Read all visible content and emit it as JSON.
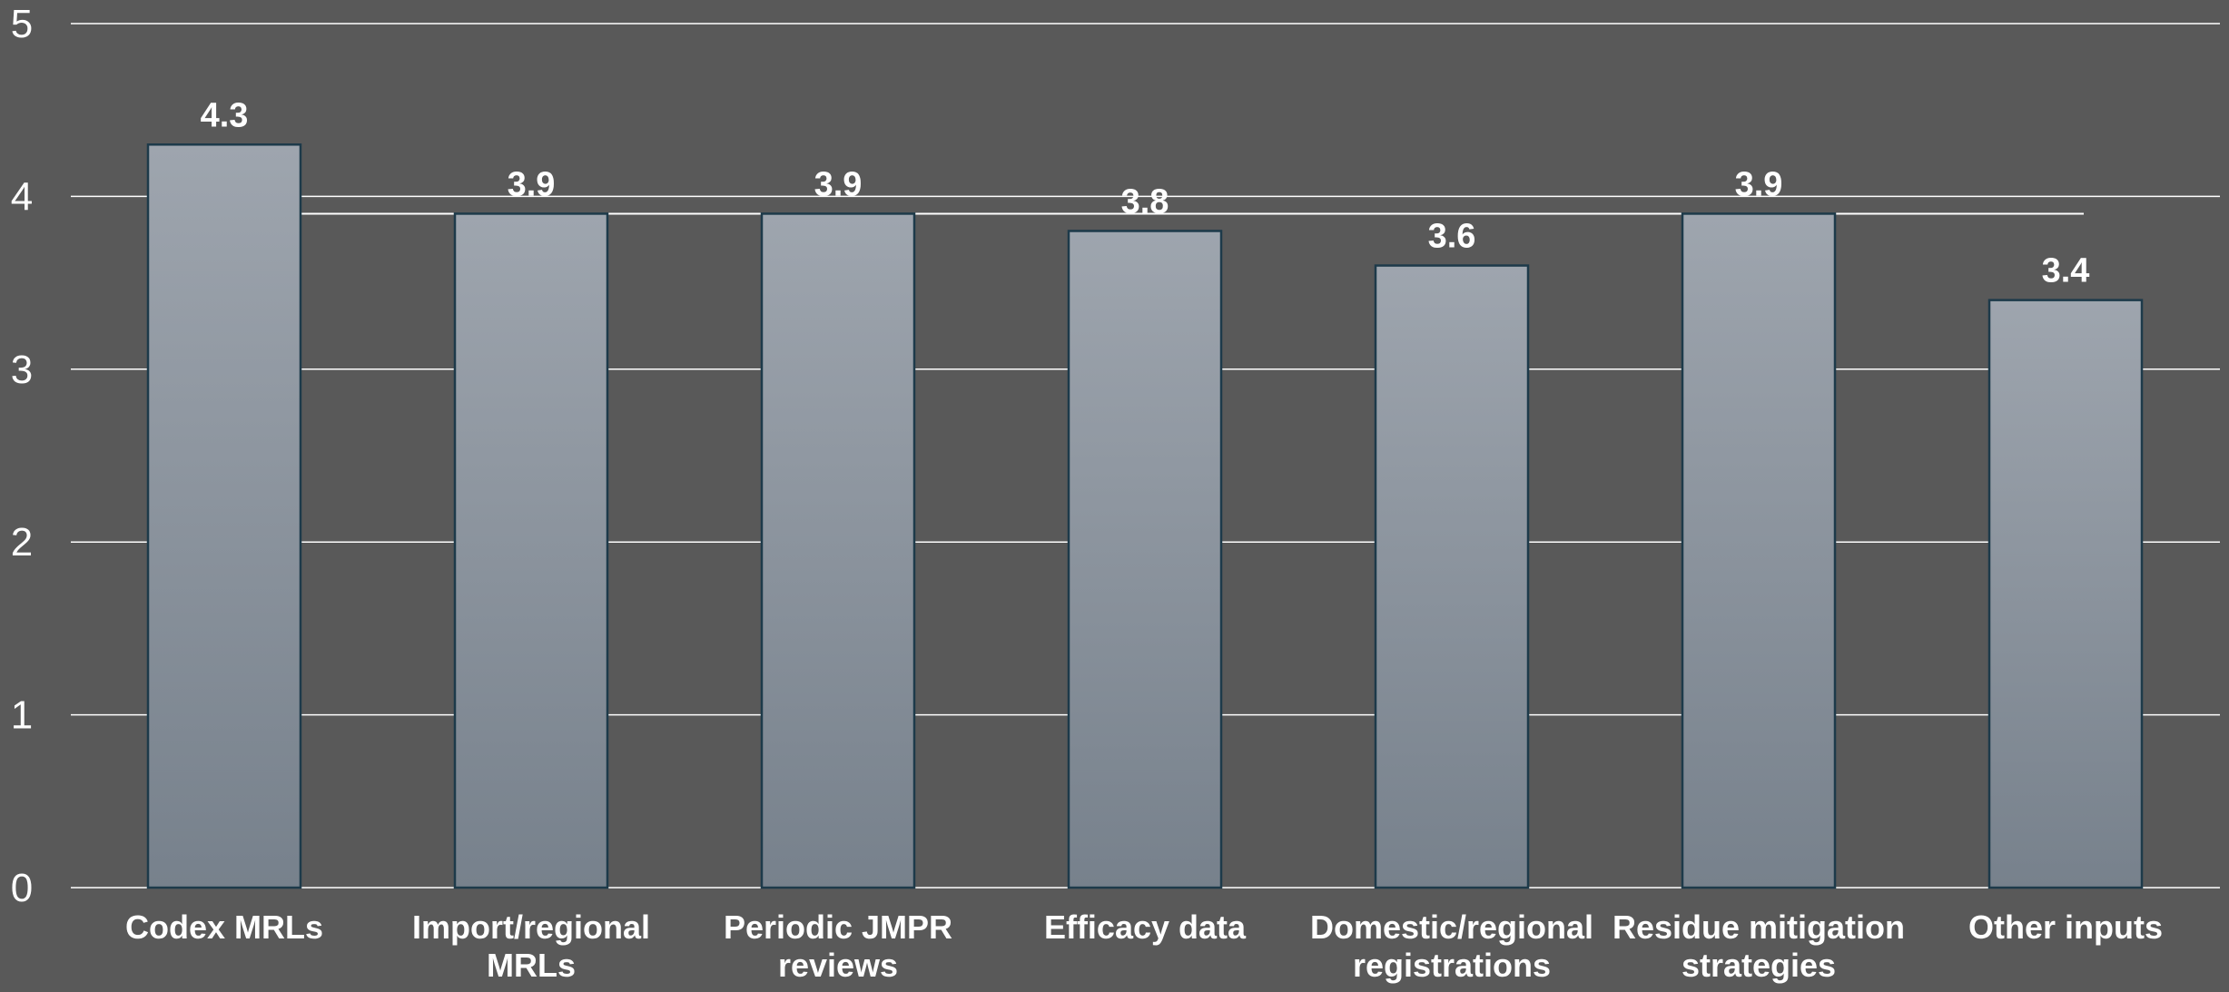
{
  "colors": {
    "background": "#595959",
    "bar_top": "#9ea5ae",
    "bar_bottom": "#77818c",
    "bar_outline": "#1d3a4a",
    "text": "#ffffff",
    "grid": "#ffffff"
  },
  "chart_data": {
    "type": "bar",
    "categories": [
      "Codex MRLs",
      "Import/regional MRLs",
      "Periodic JMPR reviews",
      "Efficacy data",
      "Domestic/regional registrations",
      "Residue mitigation strategies",
      "Other inputs"
    ],
    "category_lines": [
      [
        "Codex MRLs"
      ],
      [
        "Import/regional",
        "MRLs"
      ],
      [
        "Periodic JMPR",
        "reviews"
      ],
      [
        "Efficacy data"
      ],
      [
        "Domestic/regional",
        "registrations"
      ],
      [
        "Residue mitigation",
        "strategies"
      ],
      [
        "Other inputs"
      ]
    ],
    "values": [
      4.3,
      3.9,
      3.9,
      3.8,
      3.6,
      3.9,
      3.4
    ],
    "data_labels": [
      "4.3",
      "3.9",
      "3.9",
      "3.8",
      "3.6",
      "3.9",
      "3.4"
    ],
    "title": "",
    "xlabel": "",
    "ylabel": "",
    "ylim": [
      0,
      5
    ],
    "yticks": [
      "0",
      "1",
      "2",
      "3",
      "4",
      "5"
    ],
    "grid": true,
    "legend": "none",
    "reference_line": {
      "value": 3.9
    }
  }
}
